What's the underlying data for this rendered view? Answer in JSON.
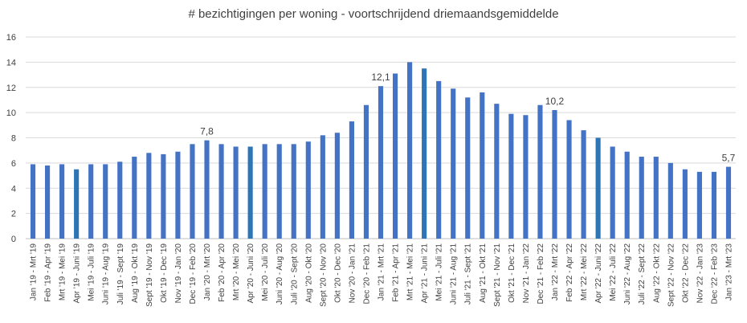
{
  "chart_data": {
    "type": "bar",
    "title": "# bezichtigingen per woning - voortschrijdend driemaandsgemiddelde",
    "xlabel": "",
    "ylabel": "",
    "ylim": [
      0,
      16
    ],
    "yticks": [
      0,
      2,
      4,
      6,
      8,
      10,
      12,
      14,
      16
    ],
    "grid": true,
    "legend": "none",
    "bar_color": "#4472C4",
    "highlight_color": "#2E75B6",
    "highlight_categories": [
      "Apr '19 - Juni '19",
      "Apr '20 - Juni '20",
      "Apr '21 - Juni '21",
      "Apr '22 - Juni '22"
    ],
    "categories": [
      "Jan '19 - Mrt '19",
      "Feb '19 - Apr '19",
      "Mrt '19 - Mei '19",
      "Apr '19 - Juni '19",
      "Mei '19 - Juli '19",
      "Juni '19 - Aug '19",
      "Juli '19 - Sept '19",
      "Aug '19 - Okt '19",
      "Sept '19 - Nov '19",
      "Okt '19 - Dec '19",
      "Nov '19 - Jan '20",
      "Dec '19 - Feb '20",
      "Jan '20 - Mrt '20",
      "Feb '20 - Apr '20",
      "Mrt '20 - Mei '20",
      "Apr '20 - Juni '20",
      "Mei '20 - Juli '20",
      "Juni '20 - Aug '20",
      "Juli '20 - Sept '20",
      "Aug '20 - Okt '20",
      "Sept '20 - Nov '20",
      "Okt '20 - Dec '20",
      "Nov '20 - Jan '21",
      "Dec '20 - Feb '21",
      "Jan '21 - Mrt '21",
      "Feb '21 - Apr '21",
      "Mrt '21 - Mei '21",
      "Apr '21 - Juni '21",
      "Mei '21 - Juli '21",
      "Juni '21 - Aug '21",
      "Juli '21 - Sept '21",
      "Aug '21 - Okt '21",
      "Sept '21 - Nov '21",
      "Okt '21 - Dec '21",
      "Nov '21 - Jan '22",
      "Dec '21 - Feb '22",
      "Jan '22 - Mrt '22",
      "Feb '22 - Apr '22",
      "Mrt '22 - Mei '22",
      "Apr '22 - Juni '22",
      "Mei '22 - Juli '22",
      "Juni '22 - Aug '22",
      "Juli '22 - Sept '22",
      "Aug '22 - Okt '22",
      "Sept '22 - Nov '22",
      "Okt '22 - Dec '22",
      "Nov '22 - Jan '23",
      "Dec '22 - Feb '23",
      "Jan '23 - Mrt '23"
    ],
    "values": [
      5.9,
      5.8,
      5.9,
      5.5,
      5.9,
      5.9,
      6.1,
      6.5,
      6.8,
      6.7,
      6.9,
      7.5,
      7.8,
      7.5,
      7.3,
      7.3,
      7.5,
      7.5,
      7.5,
      7.7,
      8.2,
      8.4,
      9.3,
      10.6,
      12.1,
      13.1,
      14.0,
      13.5,
      12.5,
      11.9,
      11.2,
      11.6,
      10.7,
      9.9,
      9.8,
      10.6,
      10.2,
      9.4,
      8.6,
      8.0,
      7.3,
      6.9,
      6.5,
      6.5,
      6.0,
      5.5,
      5.3,
      5.3,
      5.7
    ],
    "data_labels": [
      {
        "category": "Jan '20 - Mrt '20",
        "text": "7,8"
      },
      {
        "category": "Jan '21 - Mrt '21",
        "text": "12,1"
      },
      {
        "category": "Jan '22 - Mrt '22",
        "text": "10,2"
      },
      {
        "category": "Jan '23 - Mrt '23",
        "text": "5,7"
      }
    ]
  }
}
